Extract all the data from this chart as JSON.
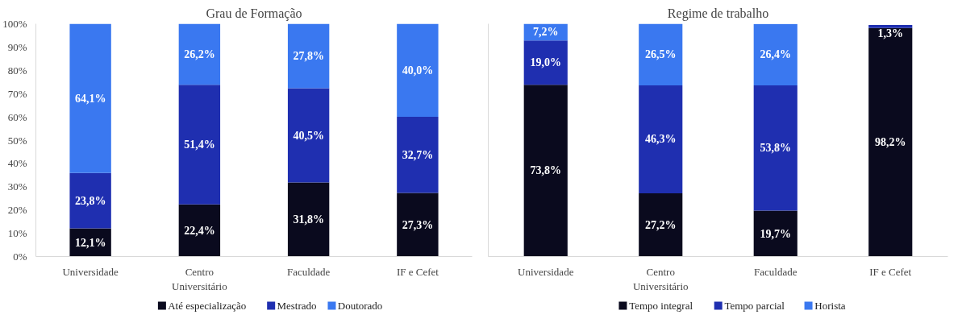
{
  "chart_data": [
    {
      "type": "bar",
      "title": "Grau de Formação",
      "stacked": true,
      "categories": [
        "Universidade",
        "Centro\nUniversitário",
        "Faculdade",
        "IF e Cefet"
      ],
      "ylim": [
        0,
        100
      ],
      "yticks": [
        {
          "value": 0,
          "label": "0%"
        },
        {
          "value": 10,
          "label": "10%"
        },
        {
          "value": 20,
          "label": "20%"
        },
        {
          "value": 30,
          "label": "30%"
        },
        {
          "value": 40,
          "label": "40%"
        },
        {
          "value": 50,
          "label": "50%"
        },
        {
          "value": 60,
          "label": "60%"
        },
        {
          "value": 70,
          "label": "70%"
        },
        {
          "value": 80,
          "label": "80%"
        },
        {
          "value": 90,
          "label": "90%"
        },
        {
          "value": 100,
          "label": "100%"
        }
      ],
      "grid": false,
      "legend": "bottom",
      "series": [
        {
          "name": "Até especialização",
          "color": "#0a0a1e",
          "values": [
            12.1,
            22.4,
            31.8,
            27.3
          ],
          "value_labels": [
            "12,1%",
            "22,4%",
            "31,8%",
            "27,3%"
          ]
        },
        {
          "name": "Mestrado",
          "color": "#1f2fb0",
          "values": [
            23.8,
            51.4,
            40.5,
            32.7
          ],
          "value_labels": [
            "23,8%",
            "51,4%",
            "40,5%",
            "32,7%"
          ]
        },
        {
          "name": "Doutorado",
          "color": "#3a78f0",
          "values": [
            64.1,
            26.2,
            27.8,
            40.0
          ],
          "value_labels": [
            "64,1%",
            "26,2%",
            "27,8%",
            "40,0%"
          ]
        }
      ]
    },
    {
      "type": "bar",
      "title": "Regime de trabalho",
      "stacked": true,
      "categories": [
        "Universidade",
        "Centro\nUniversitário",
        "Faculdade",
        "IF e Cefet"
      ],
      "ylim": [
        0,
        100
      ],
      "tick_labels": "x",
      "grid": false,
      "legend": "bottom",
      "series": [
        {
          "name": "Tempo integral",
          "color": "#0a0a1e",
          "values": [
            73.8,
            27.2,
            19.7,
            98.2
          ],
          "value_labels": [
            "73,8%",
            "27,2%",
            "19,7%",
            "98,2%"
          ]
        },
        {
          "name": "Tempo parcial",
          "color": "#1f2fb0",
          "values": [
            19.0,
            46.3,
            53.8,
            1.3
          ],
          "value_labels": [
            "19,0%",
            "46,3%",
            "53,8%",
            "1,3%"
          ]
        },
        {
          "name": "Horista",
          "color": "#3a78f0",
          "values": [
            7.2,
            26.5,
            26.4,
            null
          ],
          "value_labels": [
            "7,2%",
            "26,5%",
            "26,4%",
            null
          ]
        }
      ]
    }
  ]
}
